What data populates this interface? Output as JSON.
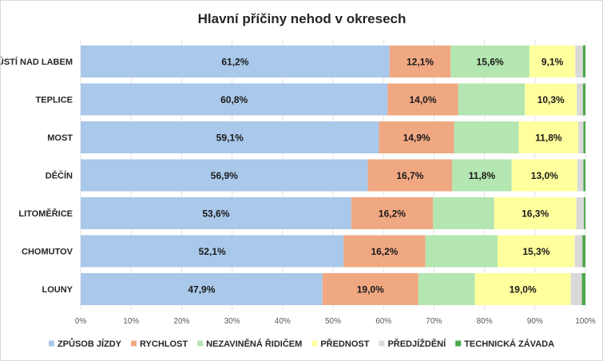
{
  "chart_data": {
    "type": "bar",
    "orientation": "horizontal",
    "stacked": true,
    "title": "Hlavní příčiny nehod v okresech",
    "categories": [
      "ÚSTÍ NAD LABEM",
      "TEPLICE",
      "MOST",
      "DĚČÍN",
      "LITOMĚŘICE",
      "CHOMUTOV",
      "LOUNY"
    ],
    "series": [
      {
        "name": "ZPŮSOB JÍZDY",
        "color": "#a9c8ea",
        "values": [
          61.2,
          60.8,
          59.1,
          56.9,
          53.6,
          52.1,
          47.9
        ],
        "labels": [
          "61,2%",
          "60,8%",
          "59,1%",
          "56,9%",
          "53,6%",
          "52,1%",
          "47,9%"
        ]
      },
      {
        "name": "RYCHLOST",
        "color": "#f0a882",
        "values": [
          12.1,
          14.0,
          14.9,
          16.7,
          16.2,
          16.2,
          19.0
        ],
        "labels": [
          "12,1%",
          "14,0%",
          "14,9%",
          "16,7%",
          "16,2%",
          "16,2%",
          "19,0%"
        ]
      },
      {
        "name": "NEZAVINĚNÁ ŘIDIČEM",
        "color": "#b3e6b0",
        "values": [
          15.6,
          13.2,
          12.8,
          11.8,
          12.1,
          14.3,
          11.2
        ],
        "labels": [
          "15,6%",
          "",
          "",
          "11,8%",
          "",
          "",
          ""
        ]
      },
      {
        "name": "PŘEDNOST",
        "color": "#ffff9e",
        "values": [
          9.1,
          10.3,
          11.8,
          13.0,
          16.3,
          15.3,
          19.0
        ],
        "labels": [
          "9,1%",
          "10,3%",
          "11,8%",
          "13,0%",
          "16,3%",
          "15,3%",
          "19,0%"
        ]
      },
      {
        "name": "PŘEDJÍŽDĚNÍ",
        "color": "#d9d9d9",
        "values": [
          1.5,
          1.2,
          1.0,
          1.2,
          1.5,
          1.5,
          2.2
        ],
        "labels": [
          "",
          "",
          "",
          "",
          "",
          "",
          ""
        ]
      },
      {
        "name": "TECHNICKÁ ZÁVADA",
        "color": "#4ca84c",
        "values": [
          0.5,
          0.5,
          0.4,
          0.4,
          0.3,
          0.6,
          0.7
        ],
        "labels": [
          "",
          "",
          "",
          "",
          "",
          "",
          ""
        ]
      }
    ],
    "xlim": [
      0,
      100
    ],
    "xticks": [
      "0%",
      "10%",
      "20%",
      "30%",
      "40%",
      "50%",
      "60%",
      "70%",
      "80%",
      "90%",
      "100%"
    ],
    "grid": true,
    "legend": "bottom"
  }
}
